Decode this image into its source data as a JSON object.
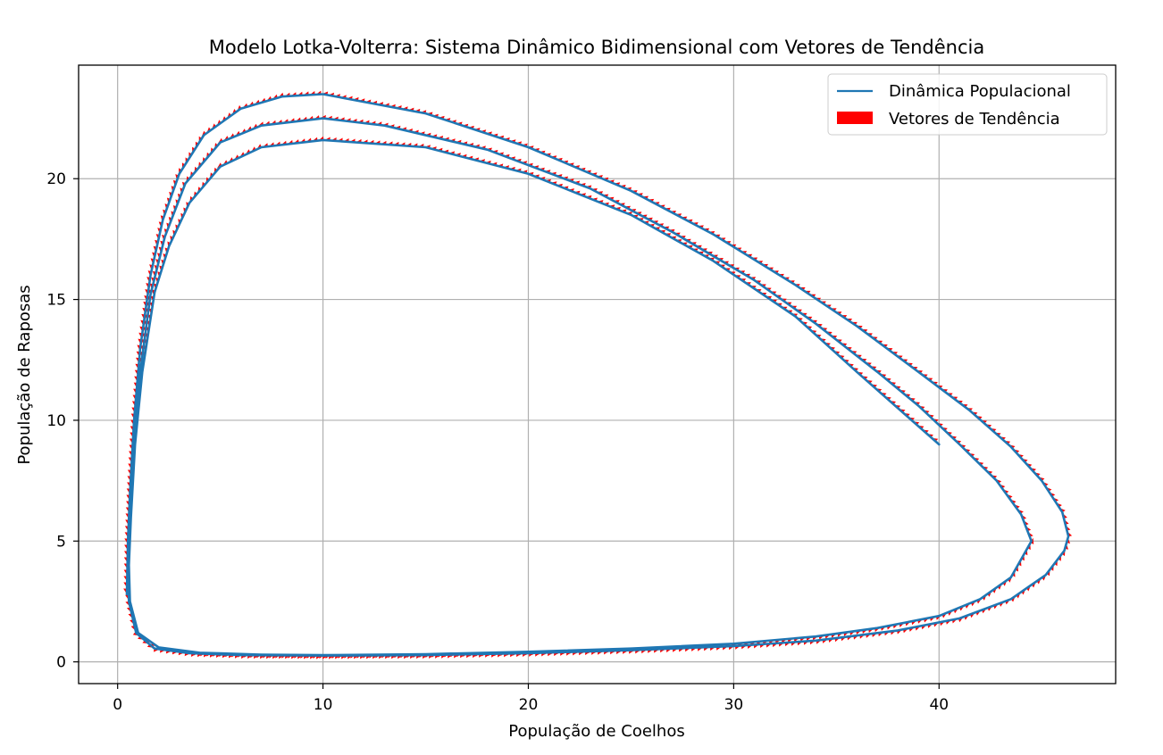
{
  "chart_data": {
    "type": "line",
    "title": "Modelo Lotka-Volterra: Sistema Dinâmico Bidimensional com Vetores de Tendência",
    "xlabel": "População de Coelhos",
    "ylabel": "População de Raposas",
    "xlim": [
      -1.9,
      48.6
    ],
    "ylim": [
      -0.9,
      24.7
    ],
    "xticks": [
      0,
      10,
      20,
      30,
      40
    ],
    "yticks": [
      0,
      5,
      10,
      15,
      20
    ],
    "grid": true,
    "legend_position": "top-right",
    "colors": {
      "line": "#1f77b4",
      "arrows": "#ff0000",
      "grid": "#b0b0b0"
    },
    "legend": [
      {
        "label": "Dinâmica Populacional",
        "kind": "line",
        "color": "#1f77b4"
      },
      {
        "label": "Vetores de Tendência",
        "kind": "patch",
        "color": "#ff0000"
      }
    ],
    "series": [
      {
        "name": "Dinâmica Populacional",
        "points": [
          [
            40.0,
            9.0
          ],
          [
            36.0,
            12.0
          ],
          [
            33.0,
            14.3
          ],
          [
            29.0,
            16.6
          ],
          [
            25.0,
            18.5
          ],
          [
            20.0,
            20.2
          ],
          [
            15.0,
            21.3
          ],
          [
            10.0,
            21.6
          ],
          [
            7.0,
            21.3
          ],
          [
            5.0,
            20.5
          ],
          [
            3.5,
            19.0
          ],
          [
            2.5,
            17.2
          ],
          [
            1.8,
            15.3
          ],
          [
            1.2,
            12.0
          ],
          [
            0.85,
            9.0
          ],
          [
            0.65,
            6.0
          ],
          [
            0.55,
            4.0
          ],
          [
            0.6,
            2.5
          ],
          [
            1.0,
            1.2
          ],
          [
            2.0,
            0.6
          ],
          [
            4.0,
            0.38
          ],
          [
            7.0,
            0.3
          ],
          [
            10.0,
            0.28
          ],
          [
            15.0,
            0.32
          ],
          [
            20.0,
            0.42
          ],
          [
            25.0,
            0.55
          ],
          [
            30.0,
            0.75
          ],
          [
            34.0,
            1.05
          ],
          [
            37.0,
            1.4
          ],
          [
            40.0,
            1.9
          ],
          [
            42.0,
            2.6
          ],
          [
            43.5,
            3.5
          ],
          [
            44.5,
            5.0
          ],
          [
            44.0,
            6.1
          ],
          [
            42.8,
            7.5
          ],
          [
            41.0,
            9.0
          ],
          [
            39.0,
            10.6
          ],
          [
            37.0,
            12.0
          ],
          [
            34.0,
            14.0
          ],
          [
            31.0,
            15.8
          ],
          [
            27.0,
            17.8
          ],
          [
            23.0,
            19.6
          ],
          [
            18.0,
            21.2
          ],
          [
            13.0,
            22.2
          ],
          [
            10.0,
            22.5
          ],
          [
            7.0,
            22.2
          ],
          [
            5.0,
            21.5
          ],
          [
            3.3,
            19.8
          ],
          [
            2.3,
            17.6
          ],
          [
            1.6,
            15.2
          ],
          [
            1.1,
            12.0
          ],
          [
            0.75,
            9.0
          ],
          [
            0.6,
            6.0
          ],
          [
            0.5,
            4.0
          ],
          [
            0.55,
            2.5
          ],
          [
            0.9,
            1.2
          ],
          [
            1.8,
            0.55
          ],
          [
            3.5,
            0.36
          ],
          [
            6.0,
            0.28
          ],
          [
            10.0,
            0.26
          ],
          [
            15.0,
            0.28
          ],
          [
            20.0,
            0.36
          ],
          [
            25.0,
            0.48
          ],
          [
            30.0,
            0.65
          ],
          [
            34.0,
            0.88
          ],
          [
            38.0,
            1.3
          ],
          [
            41.0,
            1.8
          ],
          [
            43.5,
            2.6
          ],
          [
            45.2,
            3.6
          ],
          [
            46.1,
            4.6
          ],
          [
            46.3,
            5.2
          ],
          [
            46.0,
            6.2
          ],
          [
            45.0,
            7.5
          ],
          [
            43.5,
            8.9
          ],
          [
            41.5,
            10.4
          ],
          [
            39.0,
            12.0
          ],
          [
            36.0,
            13.9
          ],
          [
            33.0,
            15.6
          ],
          [
            29.0,
            17.7
          ],
          [
            25.0,
            19.5
          ],
          [
            20.0,
            21.3
          ],
          [
            15.0,
            22.7
          ],
          [
            10.0,
            23.5
          ],
          [
            8.0,
            23.4
          ],
          [
            6.0,
            22.9
          ],
          [
            4.2,
            21.8
          ],
          [
            3.0,
            20.2
          ],
          [
            2.2,
            18.3
          ],
          [
            1.6,
            16.0
          ],
          [
            1.1,
            13.0
          ],
          [
            0.8,
            10.0
          ],
          [
            0.6,
            7.0
          ],
          [
            0.5,
            5.0
          ],
          [
            0.45,
            2.8
          ]
        ]
      }
    ]
  }
}
